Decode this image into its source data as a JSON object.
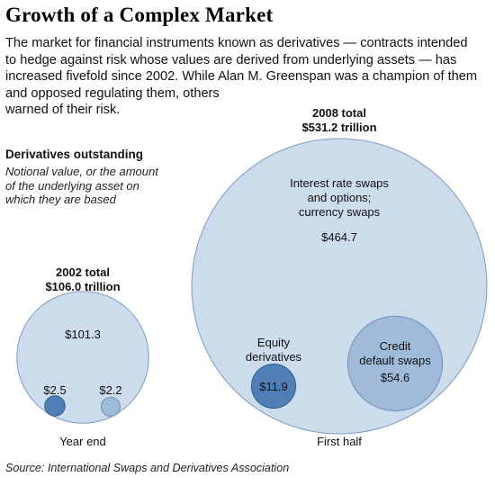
{
  "title": "Growth of a Complex Market",
  "intro_lines": [
    "The market for financial instruments known as derivatives — contracts intended",
    "to hedge against risk whose values are derived from underlying assets — has",
    "increased fivefold since 2002. While Alan M. Greenspan was a champion of them",
    "and opposed regulating them, others",
    "warned of their risk."
  ],
  "subhead": "Derivatives outstanding",
  "desc_lines": [
    "Notional value, or the amount",
    "of the underlying asset on",
    "which they are based"
  ],
  "source": "Source: International Swaps and Derivatives Association",
  "colors": {
    "total_fill": "#cddcec",
    "total_stroke": "#7f9cbf",
    "equity_fill": "#4f7fb6",
    "equity_stroke": "#2f5f93",
    "cds_fill": "#9fbbd9",
    "cds_stroke": "#6e91ba"
  },
  "chart_data": {
    "type": "bubble",
    "unit": "trillion",
    "groups": [
      {
        "total_label_line1": "2002 total",
        "total_label_line2": "$106.0 trillion",
        "period": "Year end",
        "total": 106.0,
        "components": {
          "rate_currency": {
            "value": 101.3,
            "label": "$101.3"
          },
          "equity": {
            "value": 2.5,
            "label": "$2.5"
          },
          "cds": {
            "value": 2.2,
            "label": "$2.2"
          }
        }
      },
      {
        "total_label_line1": "2008 total",
        "total_label_line2": "$531.2 trillion",
        "period": "First half",
        "total": 531.2,
        "components": {
          "rate_currency": {
            "value": 464.7,
            "label": "$464.7",
            "name_lines": [
              "Interest rate swaps",
              "and options;",
              "currency swaps"
            ]
          },
          "equity": {
            "value": 11.9,
            "label": "$11.9",
            "name_lines": [
              "Equity",
              "derivatives"
            ]
          },
          "cds": {
            "value": 54.6,
            "label": "$54.6",
            "name_lines": [
              "Credit",
              "default swaps"
            ]
          }
        }
      }
    ]
  }
}
